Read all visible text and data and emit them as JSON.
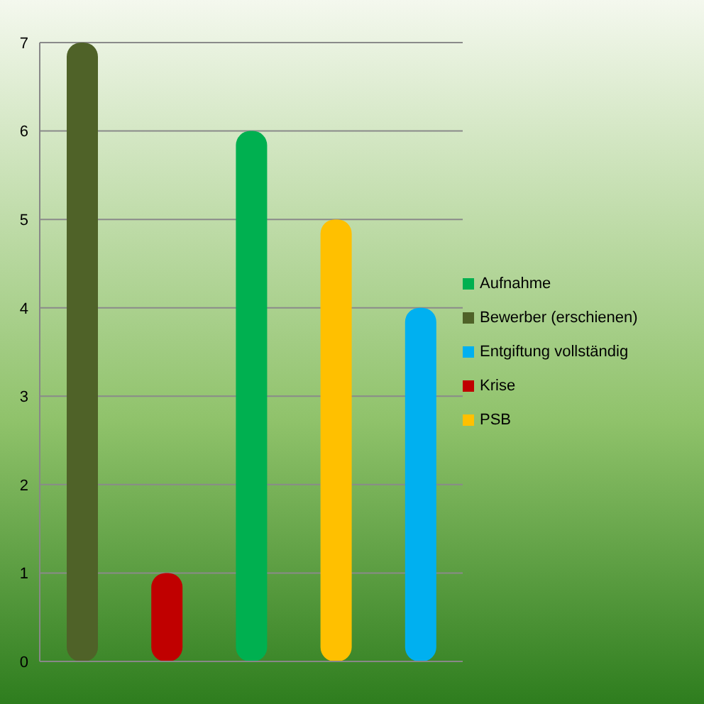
{
  "chart_data": {
    "type": "bar",
    "categories": [
      null,
      null,
      null,
      null,
      null
    ],
    "series": [
      {
        "name": "Bewerber (erschienen)",
        "color": "#4f6228",
        "values": [
          7,
          null,
          null,
          null,
          null
        ]
      },
      {
        "name": "Krise",
        "color": "#c00000",
        "values": [
          null,
          1,
          null,
          null,
          null
        ]
      },
      {
        "name": "Aufnahme",
        "color": "#00b050",
        "values": [
          null,
          null,
          6,
          null,
          null
        ]
      },
      {
        "name": "PSB",
        "color": "#ffc000",
        "values": [
          null,
          null,
          null,
          5,
          null
        ]
      },
      {
        "name": "Entgiftung vollständig",
        "color": "#00b0f0",
        "values": [
          null,
          null,
          null,
          null,
          4
        ]
      }
    ],
    "ylim": [
      0,
      7
    ],
    "yticks": [
      0,
      1,
      2,
      3,
      4,
      5,
      6,
      7
    ],
    "grid": "y",
    "legend": "right"
  }
}
